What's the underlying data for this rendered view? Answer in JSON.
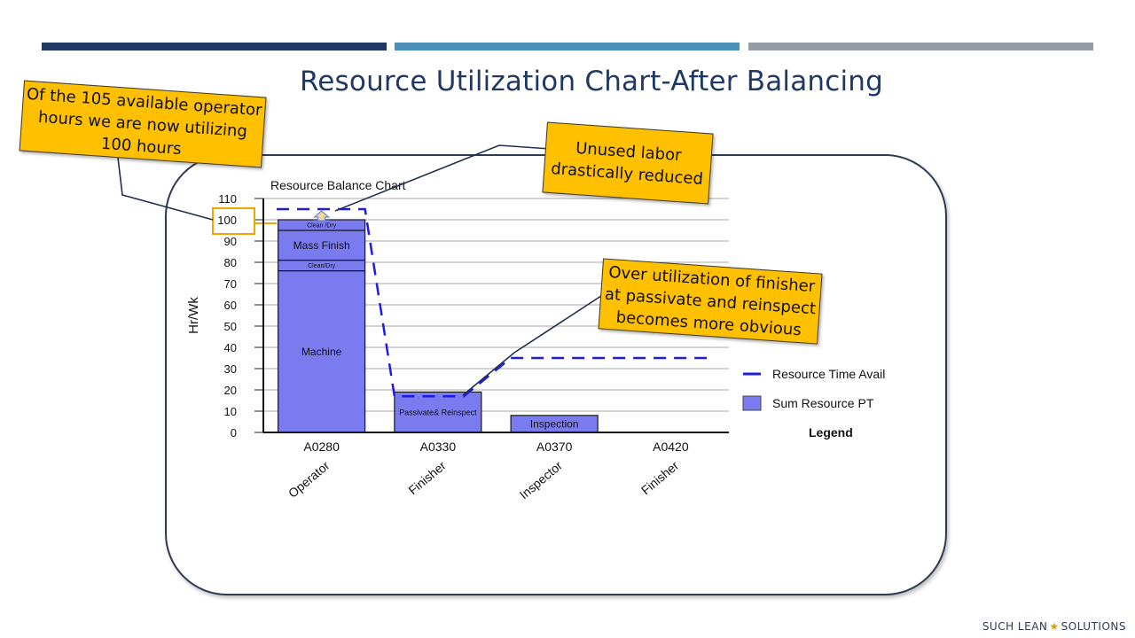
{
  "slide": {
    "title": "Resource Utilization  Chart-After Balancing",
    "footer_left": "SUCH LEAN",
    "footer_right": "SOLUTIONS",
    "colors": {
      "navy": "#1f3864",
      "blue": "#4a90b8",
      "gray": "#959ca3",
      "callout": "#ffc000"
    }
  },
  "callouts": {
    "c1": "Of the 105 available operator hours we are now utilizing 100 hours",
    "c2": "Unused labor drastically reduced",
    "c3": "Over utilization of finisher at passivate and reinspect becomes more obvious"
  },
  "chart_data": {
    "type": "bar",
    "title": "Resource Balance Chart",
    "ylabel": "Hr/Wk",
    "xlabel": "",
    "ylim": [
      0,
      110
    ],
    "yticks": [
      0,
      10,
      20,
      30,
      40,
      50,
      60,
      70,
      80,
      90,
      100,
      110
    ],
    "highlight_tick": 100,
    "categories": [
      "A0280",
      "A0330",
      "A0370",
      "A0420"
    ],
    "resources": [
      "Operator",
      "Finisher",
      "Inspector",
      "Finisher"
    ],
    "stacks": [
      [
        {
          "label": "Machine",
          "value": 76
        },
        {
          "label": "Clean/Dry",
          "value": 5
        },
        {
          "label": "Mass Finish",
          "value": 14
        },
        {
          "label": "Clean /Dry",
          "value": 5
        }
      ],
      [
        {
          "label": "Passivate& Reinspect",
          "value": 19
        }
      ],
      [
        {
          "label": "Inspection",
          "value": 8
        }
      ],
      []
    ],
    "resource_time_avail": [
      105,
      17,
      35,
      35
    ],
    "bar_color": "#7b7bf0",
    "line_color": "#1c1ce6",
    "series": [
      {
        "name": "Resource Time Avail"
      },
      {
        "name": "Sum Resource PT"
      }
    ],
    "legend_title": "Legend",
    "legend_position": "right"
  }
}
